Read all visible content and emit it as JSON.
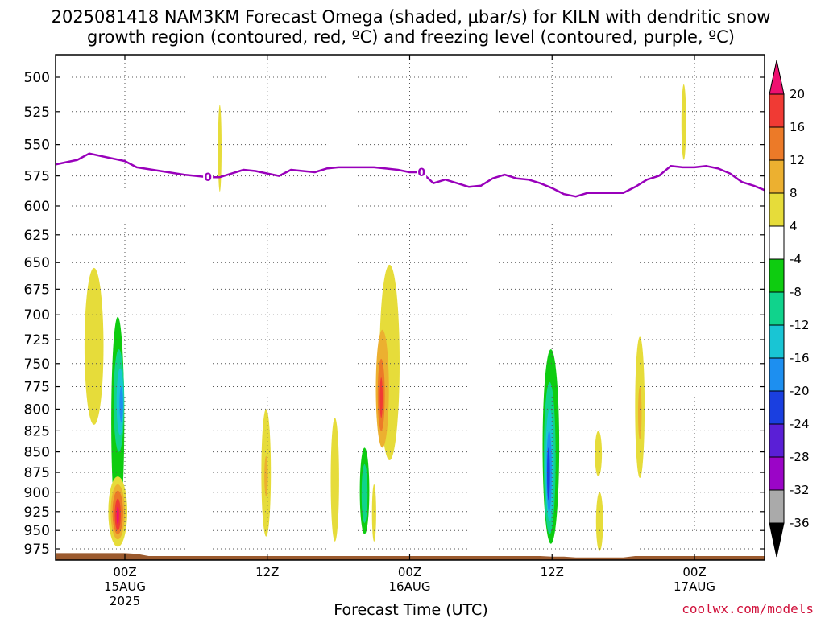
{
  "title": {
    "line1": "2025081418 NAM3KM Forecast Omega (shaded, μbar/s) for KILN with dendritic snow",
    "line2": "growth region (contoured, red, ºC) and freezing level (contoured, purple, ºC)"
  },
  "credit": "coolwx.com/models",
  "chart_data": {
    "type": "heatmap",
    "xlabel": "Forecast Time (UTC)",
    "ylabel": "",
    "x_unit": "forecast hour",
    "xlim": [
      -6,
      54
    ],
    "ylim": [
      990,
      480
    ],
    "y_ticks": [
      500,
      525,
      550,
      575,
      600,
      625,
      650,
      675,
      700,
      725,
      750,
      775,
      800,
      825,
      850,
      875,
      900,
      925,
      950,
      975
    ],
    "x_ticks": [
      {
        "hour": 0,
        "lines": [
          "00Z",
          "15AUG",
          "2025"
        ]
      },
      {
        "hour": 12,
        "lines": [
          "12Z"
        ]
      },
      {
        "hour": 24,
        "lines": [
          "00Z",
          "16AUG"
        ]
      },
      {
        "hour": 36,
        "lines": [
          "12Z"
        ]
      },
      {
        "hour": 48,
        "lines": [
          "00Z",
          "17AUG"
        ]
      }
    ],
    "grid": true,
    "colorbar": {
      "levels": [
        -36,
        -32,
        -28,
        -24,
        -20,
        -16,
        -12,
        -8,
        -4,
        4,
        8,
        12,
        16,
        20
      ],
      "colors": [
        "#aaaaaa",
        "#9b05c7",
        "#5a1fd6",
        "#1a3fe0",
        "#1d8ff0",
        "#19c5d4",
        "#10d38c",
        "#0ecc10",
        "#ffffff",
        "#e6dc3a",
        "#ecb030",
        "#ec7a28",
        "#f03a34",
        "#ee1070"
      ],
      "below_color": "#000000",
      "above_color": "#ee1070"
    },
    "freezing_level": {
      "label": "0",
      "color": "#9900bb",
      "points": [
        [
          -6,
          566
        ],
        [
          -4,
          562
        ],
        [
          -3,
          557
        ],
        [
          -2,
          559
        ],
        [
          0,
          563
        ],
        [
          1,
          568
        ],
        [
          3,
          571
        ],
        [
          5,
          574
        ],
        [
          6,
          575
        ],
        [
          7,
          576
        ],
        [
          8,
          576
        ],
        [
          9,
          573
        ],
        [
          10,
          570
        ],
        [
          11,
          571
        ],
        [
          12,
          573
        ],
        [
          13,
          575
        ],
        [
          14,
          570
        ],
        [
          15,
          571
        ],
        [
          16,
          572
        ],
        [
          17,
          569
        ],
        [
          18,
          568
        ],
        [
          19,
          568
        ],
        [
          20,
          568
        ],
        [
          21,
          568
        ],
        [
          22,
          569
        ],
        [
          23,
          570
        ],
        [
          24,
          572
        ],
        [
          25,
          572
        ],
        [
          26,
          581
        ],
        [
          27,
          578
        ],
        [
          28,
          581
        ],
        [
          29,
          584
        ],
        [
          30,
          583
        ],
        [
          31,
          577
        ],
        [
          32,
          574
        ],
        [
          33,
          577
        ],
        [
          34,
          578
        ],
        [
          35,
          581
        ],
        [
          36,
          585
        ],
        [
          37,
          590
        ],
        [
          38,
          592
        ],
        [
          39,
          589
        ],
        [
          40,
          589
        ],
        [
          41,
          589
        ],
        [
          42,
          589
        ],
        [
          43,
          584
        ],
        [
          44,
          578
        ],
        [
          45,
          575
        ],
        [
          46,
          567
        ],
        [
          47,
          568
        ],
        [
          48,
          568
        ],
        [
          49,
          567
        ],
        [
          50,
          569
        ],
        [
          51,
          573
        ],
        [
          52,
          580
        ],
        [
          53,
          583
        ],
        [
          54,
          587
        ]
      ]
    },
    "shaded_regions": [
      {
        "level": 4,
        "center": [
          -2.6,
          740
        ],
        "width": 1.6,
        "p_top": 655,
        "p_bot": 818
      },
      {
        "level": -4,
        "center": [
          -0.5,
          838
        ],
        "width": 1.5,
        "p_top": 692,
        "p_bot": 958
      },
      {
        "level": -8,
        "center": [
          -0.6,
          845
        ],
        "width": 1.1,
        "p_top": 702,
        "p_bot": 945
      },
      {
        "level": -12,
        "center": [
          -0.5,
          790
        ],
        "width": 0.9,
        "p_top": 735,
        "p_bot": 850
      },
      {
        "level": -16,
        "center": [
          -0.4,
          795
        ],
        "width": 0.6,
        "p_top": 755,
        "p_bot": 830
      },
      {
        "level": -20,
        "center": [
          -0.3,
          795
        ],
        "width": 0.3,
        "p_top": 775,
        "p_bot": 815
      },
      {
        "level": 4,
        "center": [
          -0.6,
          930
        ],
        "width": 1.6,
        "p_top": 880,
        "p_bot": 972
      },
      {
        "level": 8,
        "center": [
          -0.6,
          928
        ],
        "width": 1.2,
        "p_top": 890,
        "p_bot": 962
      },
      {
        "level": 12,
        "center": [
          -0.6,
          928
        ],
        "width": 0.9,
        "p_top": 898,
        "p_bot": 955
      },
      {
        "level": 16,
        "center": [
          -0.6,
          928
        ],
        "width": 0.5,
        "p_top": 908,
        "p_bot": 950
      },
      {
        "level": 20,
        "center": [
          -0.6,
          930
        ],
        "width": 0.2,
        "p_top": 918,
        "p_bot": 942
      },
      {
        "level": 4,
        "center": [
          8.0,
          552
        ],
        "width": 0.3,
        "p_top": 520,
        "p_bot": 588
      },
      {
        "level": -4,
        "center": [
          8.1,
          747
        ],
        "width": 0.3,
        "p_top": 738,
        "p_bot": 762
      },
      {
        "level": 4,
        "center": [
          11.9,
          880
        ],
        "width": 0.8,
        "p_top": 800,
        "p_bot": 958
      },
      {
        "level": 8,
        "center": [
          11.9,
          880
        ],
        "width": 0.3,
        "p_top": 855,
        "p_bot": 905
      },
      {
        "level": 4,
        "center": [
          17.7,
          892
        ],
        "width": 0.7,
        "p_top": 810,
        "p_bot": 965
      },
      {
        "level": -4,
        "center": [
          19.0,
          745
        ],
        "width": 0.6,
        "p_top": 678,
        "p_bot": 828
      },
      {
        "level": -4,
        "center": [
          19.1,
          910
        ],
        "width": 0.4,
        "p_top": 878,
        "p_bot": 950
      },
      {
        "level": -4,
        "center": [
          20.2,
          890
        ],
        "width": 1.1,
        "p_top": 828,
        "p_bot": 970
      },
      {
        "level": -8,
        "center": [
          20.2,
          895
        ],
        "width": 0.8,
        "p_top": 845,
        "p_bot": 955
      },
      {
        "level": -12,
        "center": [
          20.2,
          900
        ],
        "width": 0.5,
        "p_top": 865,
        "p_bot": 940
      },
      {
        "level": 4,
        "center": [
          21.0,
          920
        ],
        "width": 0.35,
        "p_top": 890,
        "p_bot": 965
      },
      {
        "level": 4,
        "center": [
          22.3,
          745
        ],
        "width": 1.7,
        "p_top": 652,
        "p_bot": 860
      },
      {
        "level": 8,
        "center": [
          21.7,
          775
        ],
        "width": 1.1,
        "p_top": 715,
        "p_bot": 845
      },
      {
        "level": 12,
        "center": [
          21.6,
          780
        ],
        "width": 0.6,
        "p_top": 745,
        "p_bot": 825
      },
      {
        "level": 16,
        "center": [
          21.6,
          785
        ],
        "width": 0.25,
        "p_top": 765,
        "p_bot": 810
      },
      {
        "level": -4,
        "center": [
          21.7,
          585
        ],
        "width": 0.3,
        "p_top": 545,
        "p_bot": 610
      },
      {
        "level": -4,
        "center": [
          22.3,
          922
        ],
        "width": 0.5,
        "p_top": 880,
        "p_bot": 962
      },
      {
        "level": -4,
        "center": [
          36.0,
          845
        ],
        "width": 2.0,
        "p_top": 707,
        "p_bot": 977
      },
      {
        "level": -8,
        "center": [
          35.9,
          860
        ],
        "width": 1.4,
        "p_top": 735,
        "p_bot": 968
      },
      {
        "level": -12,
        "center": [
          35.8,
          870
        ],
        "width": 1.0,
        "p_top": 770,
        "p_bot": 955
      },
      {
        "level": -16,
        "center": [
          35.8,
          875
        ],
        "width": 0.7,
        "p_top": 800,
        "p_bot": 938
      },
      {
        "level": -20,
        "center": [
          35.75,
          878
        ],
        "width": 0.45,
        "p_top": 825,
        "p_bot": 925
      },
      {
        "level": -24,
        "center": [
          35.7,
          875
        ],
        "width": 0.25,
        "p_top": 845,
        "p_bot": 910
      },
      {
        "level": 4,
        "center": [
          39.9,
          850
        ],
        "width": 0.6,
        "p_top": 825,
        "p_bot": 880
      },
      {
        "level": 4,
        "center": [
          40.0,
          940
        ],
        "width": 0.6,
        "p_top": 900,
        "p_bot": 978
      },
      {
        "level": -4,
        "center": [
          41.9,
          915
        ],
        "width": 0.15,
        "p_top": 890,
        "p_bot": 940
      },
      {
        "level": 4,
        "center": [
          43.4,
          805
        ],
        "width": 0.8,
        "p_top": 722,
        "p_bot": 882
      },
      {
        "level": 8,
        "center": [
          43.4,
          805
        ],
        "width": 0.3,
        "p_top": 775,
        "p_bot": 835
      },
      {
        "level": 4,
        "center": [
          47.1,
          532
        ],
        "width": 0.4,
        "p_top": 505,
        "p_bot": 562
      },
      {
        "level": -4,
        "center": [
          52.1,
          752
        ],
        "width": 0.2,
        "p_top": 725,
        "p_bot": 780
      }
    ],
    "terrain": {
      "color": "#9b5a2e",
      "points": [
        [
          -6,
          981
        ],
        [
          0,
          981
        ],
        [
          1,
          982
        ],
        [
          2,
          985
        ],
        [
          12,
          985
        ],
        [
          24,
          985
        ],
        [
          34,
          985
        ],
        [
          35,
          985
        ],
        [
          36,
          986
        ],
        [
          37,
          986
        ],
        [
          38,
          987
        ],
        [
          42,
          987
        ],
        [
          43,
          985
        ],
        [
          46,
          985
        ],
        [
          54,
          985
        ]
      ]
    }
  }
}
